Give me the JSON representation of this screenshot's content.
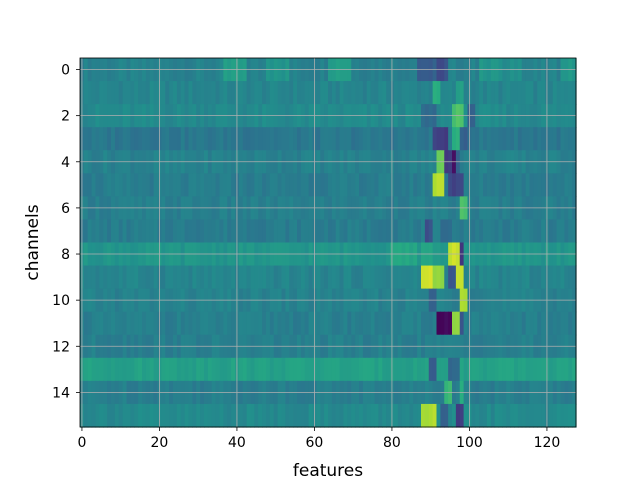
{
  "chart_data": {
    "type": "heatmap",
    "title": "",
    "xlabel": "features",
    "ylabel": "channels",
    "x_range": [
      0,
      127
    ],
    "y_range": [
      0,
      15
    ],
    "y_inverted": true,
    "grid": true,
    "colormap": "viridis",
    "x_ticks": [
      0,
      20,
      40,
      60,
      80,
      100,
      120
    ],
    "y_ticks": [
      0,
      2,
      4,
      6,
      8,
      10,
      12,
      14
    ],
    "n_features": 128,
    "n_channels": 16,
    "baseline_value": 0.45,
    "rows": [
      {
        "channel": 0,
        "base": 0.44,
        "hot": [
          {
            "from": 37,
            "to": 42,
            "v": 0.56
          },
          {
            "from": 48,
            "to": 53,
            "v": 0.52
          },
          {
            "from": 64,
            "to": 69,
            "v": 0.56
          },
          {
            "from": 87,
            "to": 91,
            "v": 0.3
          },
          {
            "from": 92,
            "to": 94,
            "v": 0.25
          },
          {
            "from": 103,
            "to": 108,
            "v": 0.52
          },
          {
            "from": 110,
            "to": 113,
            "v": 0.5
          },
          {
            "from": 124,
            "to": 127,
            "v": 0.54
          }
        ]
      },
      {
        "channel": 1,
        "base": 0.45,
        "hot": [
          {
            "from": 91,
            "to": 92,
            "v": 0.62
          },
          {
            "from": 97,
            "to": 98,
            "v": 0.58
          }
        ]
      },
      {
        "channel": 2,
        "base": 0.47,
        "hot": [
          {
            "from": 88,
            "to": 91,
            "v": 0.36
          },
          {
            "from": 96,
            "to": 98,
            "v": 0.72
          },
          {
            "from": 100,
            "to": 101,
            "v": 0.32
          }
        ]
      },
      {
        "channel": 3,
        "base": 0.4,
        "hot": [
          {
            "from": 91,
            "to": 94,
            "v": 0.2
          },
          {
            "from": 96,
            "to": 97,
            "v": 0.65
          },
          {
            "from": 98,
            "to": 99,
            "v": 0.3
          }
        ]
      },
      {
        "channel": 4,
        "base": 0.44,
        "hot": [
          {
            "from": 92,
            "to": 93,
            "v": 0.78
          },
          {
            "from": 94,
            "to": 95,
            "v": 0.18
          },
          {
            "from": 96,
            "to": 96,
            "v": 0.05
          },
          {
            "from": 97,
            "to": 97,
            "v": 0.3
          }
        ]
      },
      {
        "channel": 5,
        "base": 0.42,
        "hot": [
          {
            "from": 91,
            "to": 93,
            "v": 0.9
          },
          {
            "from": 95,
            "to": 98,
            "v": 0.22
          }
        ]
      },
      {
        "channel": 6,
        "base": 0.43,
        "hot": [
          {
            "from": 98,
            "to": 99,
            "v": 0.72
          }
        ]
      },
      {
        "channel": 7,
        "base": 0.42,
        "hot": [
          {
            "from": 89,
            "to": 90,
            "v": 0.25
          },
          {
            "from": 93,
            "to": 95,
            "v": 0.35
          }
        ]
      },
      {
        "channel": 8,
        "base": 0.52,
        "hot": [
          {
            "from": 80,
            "to": 86,
            "v": 0.6
          },
          {
            "from": 88,
            "to": 90,
            "v": 0.58
          },
          {
            "from": 95,
            "to": 97,
            "v": 0.92
          },
          {
            "from": 98,
            "to": 98,
            "v": 0.15
          }
        ]
      },
      {
        "channel": 9,
        "base": 0.45,
        "hot": [
          {
            "from": 88,
            "to": 90,
            "v": 0.95
          },
          {
            "from": 91,
            "to": 93,
            "v": 0.85
          },
          {
            "from": 95,
            "to": 96,
            "v": 0.25
          },
          {
            "from": 97,
            "to": 98,
            "v": 0.92
          }
        ]
      },
      {
        "channel": 10,
        "base": 0.44,
        "hot": [
          {
            "from": 90,
            "to": 91,
            "v": 0.3
          },
          {
            "from": 98,
            "to": 99,
            "v": 0.88
          }
        ]
      },
      {
        "channel": 11,
        "base": 0.43,
        "hot": [
          {
            "from": 92,
            "to": 95,
            "v": 0.02
          },
          {
            "from": 96,
            "to": 97,
            "v": 0.82
          },
          {
            "from": 98,
            "to": 98,
            "v": 0.25
          }
        ]
      },
      {
        "channel": 12,
        "base": 0.43,
        "hot": []
      },
      {
        "channel": 13,
        "base": 0.57,
        "hot": [
          {
            "from": 90,
            "to": 91,
            "v": 0.3
          },
          {
            "from": 95,
            "to": 97,
            "v": 0.35
          }
        ]
      },
      {
        "channel": 14,
        "base": 0.43,
        "hot": [
          {
            "from": 94,
            "to": 95,
            "v": 0.68
          },
          {
            "from": 98,
            "to": 98,
            "v": 0.65
          }
        ]
      },
      {
        "channel": 15,
        "base": 0.47,
        "hot": [
          {
            "from": 88,
            "to": 91,
            "v": 0.88
          },
          {
            "from": 93,
            "to": 94,
            "v": 0.3
          },
          {
            "from": 97,
            "to": 98,
            "v": 0.2
          }
        ]
      }
    ]
  }
}
